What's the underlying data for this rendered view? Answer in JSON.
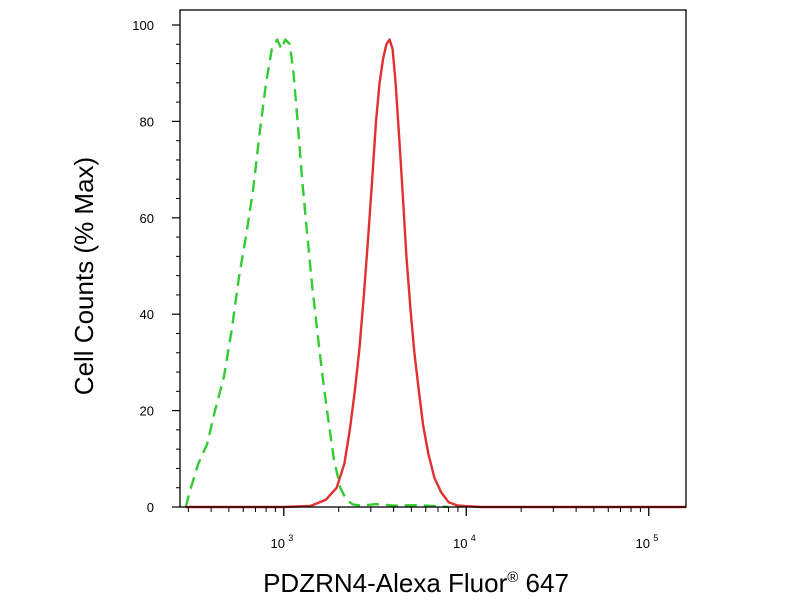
{
  "chart_data": {
    "type": "line",
    "xlabel": "PDZRN4-Alexa Fluor",
    "xlabel_superscript": "®",
    "xlabel_suffix": " 647",
    "ylabel": "Cell Counts (% Max)",
    "xscale": "log",
    "xlim": [
      270,
      160000
    ],
    "ylim": [
      0,
      100
    ],
    "yticks": [
      0,
      20,
      40,
      60,
      80,
      100
    ],
    "xticks": [
      {
        "value": 1000,
        "base": "10",
        "exp": "3"
      },
      {
        "value": 10000,
        "base": "10",
        "exp": "4"
      },
      {
        "value": 100000,
        "base": "10",
        "exp": "5"
      }
    ],
    "grid": false,
    "legend": "none",
    "series": [
      {
        "color": "#33cc33",
        "dash": "dashed",
        "x": [
          290,
          310,
          340,
          380,
          420,
          470,
          520,
          570,
          620,
          680,
          740,
          800,
          860,
          920,
          970,
          1020,
          1080,
          1130,
          1190,
          1260,
          1340,
          1430,
          1520,
          1620,
          1740,
          1880,
          2040,
          2200,
          2400,
          2700,
          3200,
          4000,
          5500,
          8000
        ],
        "y": [
          0,
          4,
          9,
          13,
          20,
          27,
          37,
          48,
          56,
          66,
          78,
          88,
          95,
          97,
          95,
          97,
          96,
          90,
          80,
          68,
          57,
          46,
          37,
          28,
          19,
          10,
          4,
          1.5,
          0.5,
          0.3,
          0.6,
          0.3,
          0.4,
          0
        ]
      },
      {
        "color": "#e03030",
        "dash": "solid",
        "x": [
          290,
          600,
          1000,
          1400,
          1700,
          1950,
          2150,
          2300,
          2450,
          2600,
          2750,
          2900,
          3050,
          3200,
          3350,
          3500,
          3650,
          3800,
          3950,
          4100,
          4300,
          4500,
          4700,
          4950,
          5200,
          5500,
          5800,
          6200,
          6700,
          7300,
          8000,
          9000,
          12000,
          20000,
          50000,
          100000,
          160000
        ],
        "y": [
          0,
          0,
          0,
          0.2,
          1.5,
          4,
          9,
          16,
          24,
          33,
          44,
          56,
          68,
          80,
          88,
          93,
          96,
          97,
          95,
          88,
          76,
          64,
          52,
          41,
          32,
          24,
          17,
          11,
          6,
          3,
          1,
          0.3,
          0,
          0,
          0,
          0,
          0
        ]
      }
    ]
  }
}
